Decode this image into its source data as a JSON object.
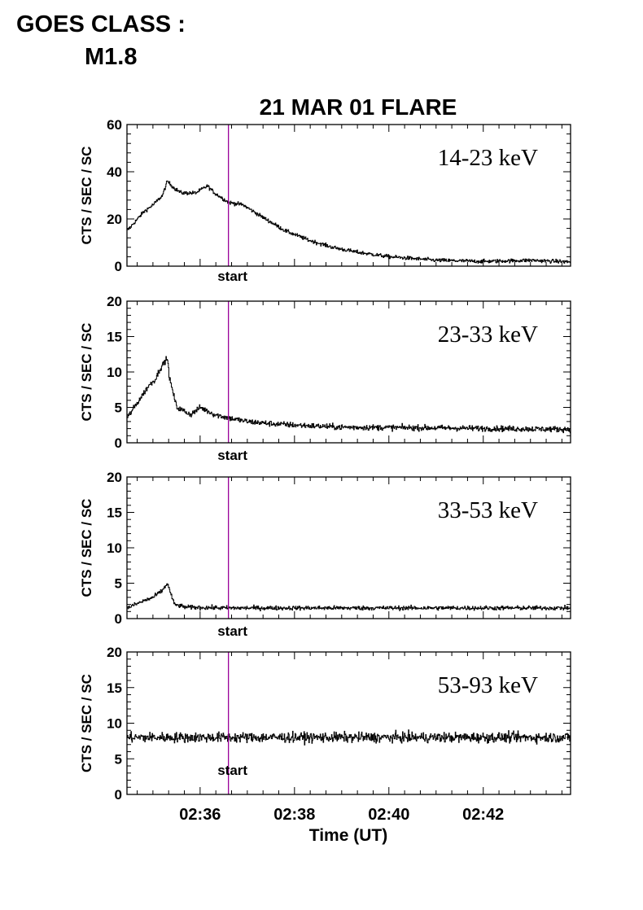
{
  "header": {
    "goes_label": "GOES CLASS :",
    "goes_class": "M1.8"
  },
  "chart_data": {
    "type": "line",
    "title": "21 MAR 01 FLARE",
    "xlabel": "Time (UT)",
    "x_tick_labels": [
      "02:36",
      "02:38",
      "02:40",
      "02:42"
    ],
    "x_ticks_minutes": [
      36,
      38,
      40,
      42
    ],
    "xlim_minutes_after_0200": [
      34.45,
      43.85
    ],
    "marker": {
      "label": "start",
      "time_minutes_after_0200": 36.6,
      "color": "#990099"
    },
    "line_color": "#000000",
    "grid": false,
    "panels": [
      {
        "band": "14-23 keV",
        "ylabel": "CTS / SEC / SC",
        "ylim": [
          0,
          60
        ],
        "y_ticks": [
          0,
          20,
          40,
          60
        ],
        "noise": 0.8,
        "profile_minutes": [
          34.45,
          34.8,
          35.0,
          35.2,
          35.3,
          35.45,
          35.6,
          35.9,
          36.15,
          36.3,
          36.6,
          36.9,
          37.3,
          37.8,
          38.3,
          38.8,
          39.3,
          40.0,
          41.0,
          42.0,
          43.0,
          43.85
        ],
        "profile_values": [
          15,
          23,
          26,
          30,
          36,
          33,
          31,
          31,
          34,
          31,
          27,
          26,
          21,
          15,
          11,
          8,
          6,
          4,
          2.5,
          2,
          2.5,
          1.8
        ]
      },
      {
        "band": "23-33 keV",
        "ylabel": "CTS / SEC / SC",
        "ylim": [
          0,
          20
        ],
        "y_ticks": [
          0,
          5,
          10,
          15,
          20
        ],
        "noise": 0.4,
        "profile_minutes": [
          34.45,
          34.7,
          34.9,
          35.05,
          35.15,
          35.3,
          35.35,
          35.5,
          35.8,
          36.0,
          36.3,
          36.6,
          37.0,
          37.5,
          38.0,
          39.0,
          41.0,
          43.85
        ],
        "profile_values": [
          3.5,
          6,
          8,
          9,
          10.5,
          12,
          9,
          5,
          4,
          5,
          4,
          3.5,
          3,
          2.7,
          2.5,
          2.2,
          2.1,
          1.9
        ]
      },
      {
        "band": "33-53 keV",
        "ylabel": "CTS / SEC / SC",
        "ylim": [
          0,
          20
        ],
        "y_ticks": [
          0,
          5,
          10,
          15,
          20
        ],
        "noise": 0.3,
        "profile_minutes": [
          34.45,
          34.8,
          35.0,
          35.2,
          35.3,
          35.45,
          35.7,
          36.6,
          38.0,
          43.85
        ],
        "profile_values": [
          1.5,
          2.5,
          3,
          4,
          5,
          2,
          1.6,
          1.5,
          1.5,
          1.5
        ]
      },
      {
        "band": "53-93 keV",
        "ylabel": "CTS / SEC / SC",
        "ylim": [
          0,
          20
        ],
        "y_ticks": [
          0,
          5,
          10,
          15,
          20
        ],
        "noise": 0.7,
        "profile_minutes": [
          34.45,
          43.85
        ],
        "profile_values": [
          8,
          8
        ]
      }
    ]
  }
}
